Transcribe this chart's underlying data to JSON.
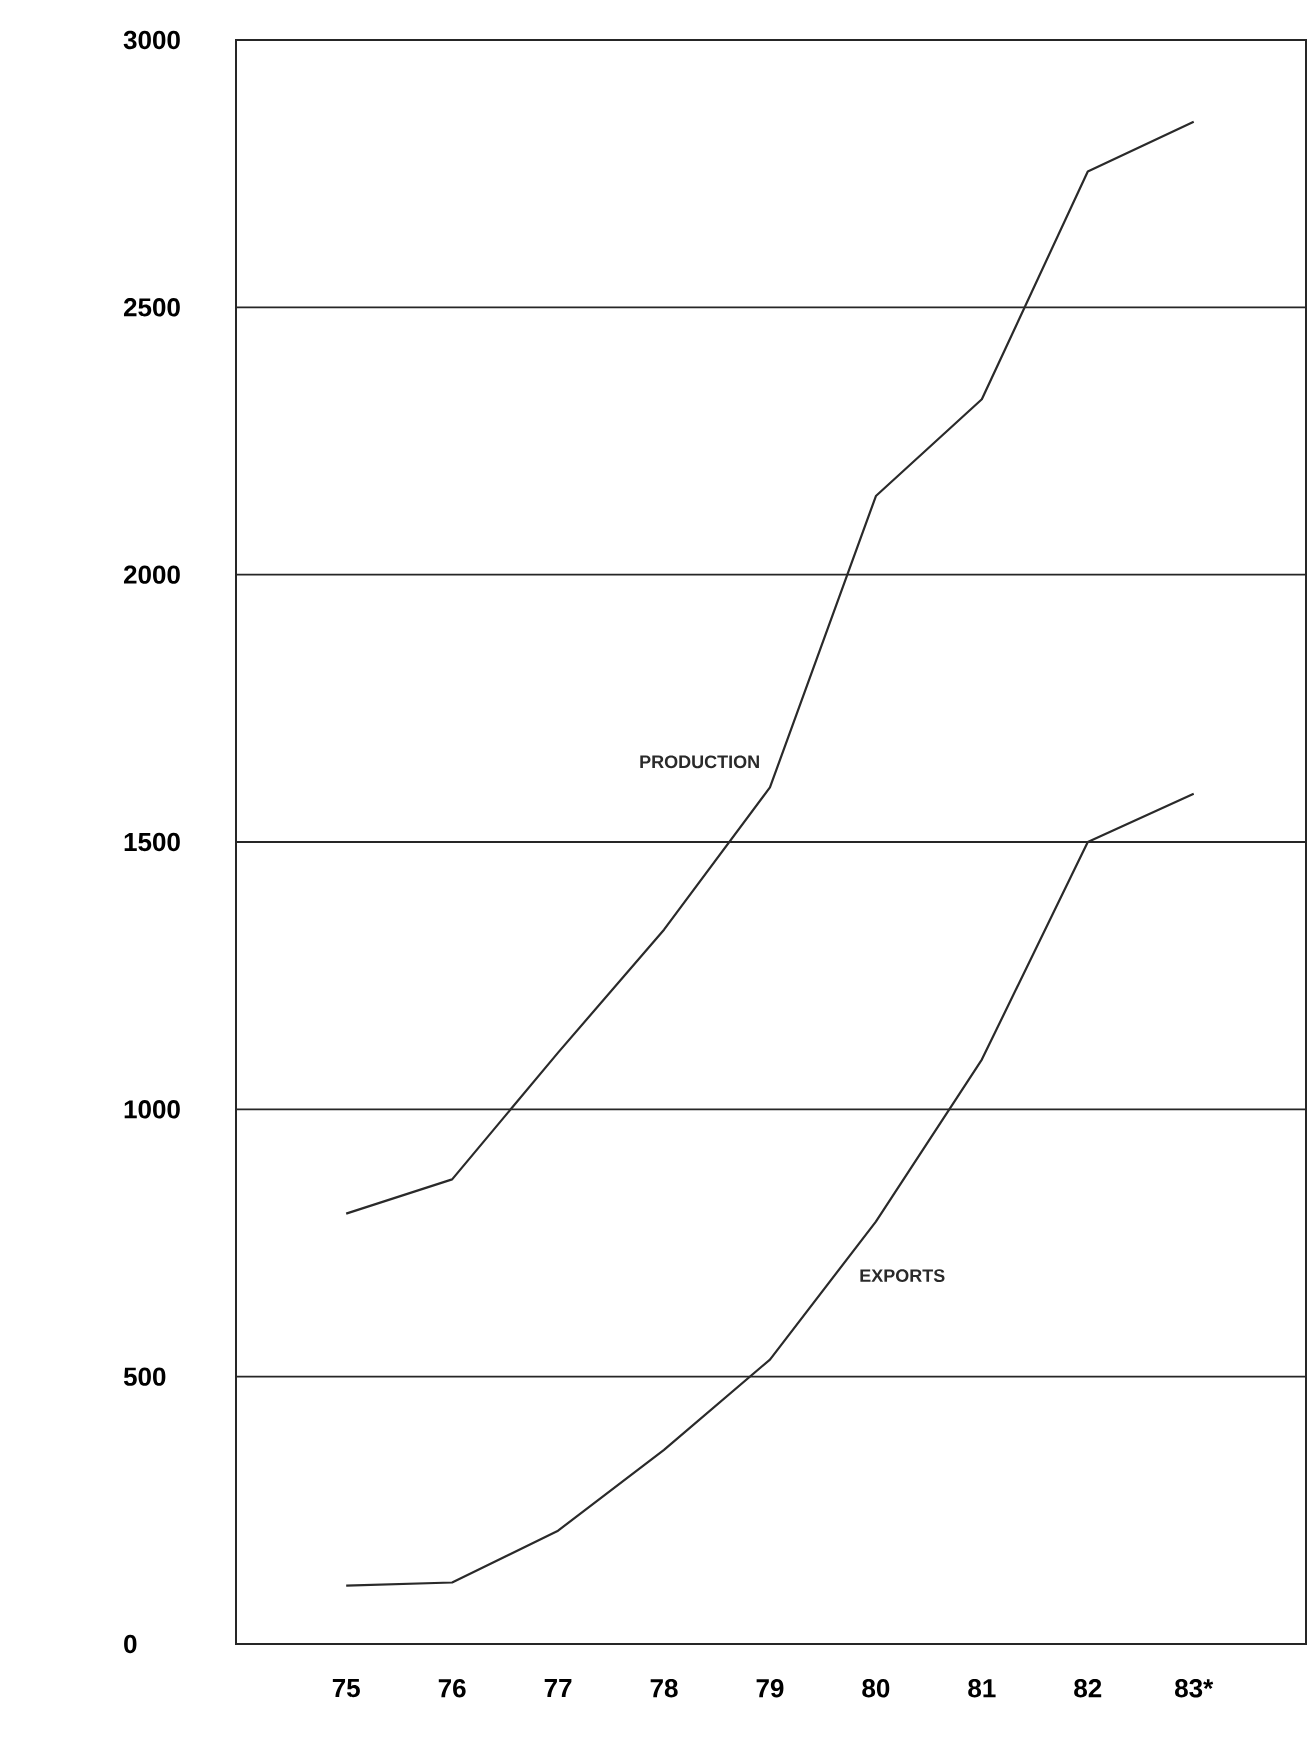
{
  "chart_data": {
    "type": "line",
    "categories": [
      "75",
      "76",
      "77",
      "78",
      "79",
      "80",
      "81",
      "82",
      "83*"
    ],
    "series": [
      {
        "name": "PRODUCTION",
        "color": "#2a2a2a",
        "values": [
          805,
          869,
          1106,
          1336,
          1602,
          2147,
          2328,
          2754,
          2847
        ]
      },
      {
        "name": "EXPORTS",
        "color": "#2a2a2a",
        "values": [
          109,
          115,
          212,
          363,
          532,
          790,
          1093,
          1500,
          1590
        ]
      }
    ],
    "ylim": [
      0,
      3000
    ],
    "yticks": [
      0,
      500,
      1000,
      1500,
      2000,
      2500,
      3000
    ],
    "grid": "y",
    "legend": false,
    "marker": "none",
    "line_style": "solid"
  }
}
